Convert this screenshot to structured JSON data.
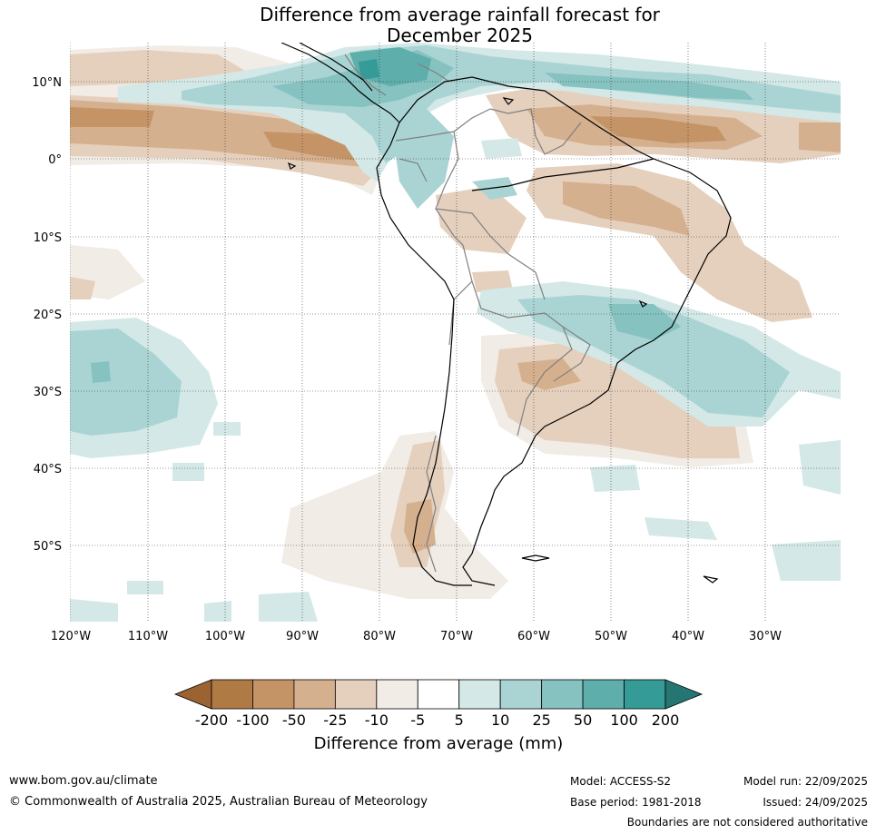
{
  "title": {
    "line1": "Difference from average rainfall forecast for",
    "line2": "December 2025"
  },
  "map": {
    "lat_labels": [
      "10°N",
      "0°",
      "10°S",
      "20°S",
      "30°S",
      "40°S",
      "50°S"
    ],
    "lon_labels": [
      "120°W",
      "110°W",
      "100°W",
      "90°W",
      "80°W",
      "70°W",
      "60°W",
      "50°W",
      "40°W",
      "30°W"
    ]
  },
  "colorbar": {
    "ticks": [
      "-200",
      "-100",
      "-50",
      "-25",
      "-10",
      "-5",
      "5",
      "10",
      "25",
      "50",
      "100",
      "200"
    ],
    "colors": [
      "#9c6332",
      "#b07a45",
      "#c49467",
      "#d5b08e",
      "#e5d0bd",
      "#f1ece6",
      "#ffffff",
      "#d3e8e7",
      "#aad4d3",
      "#85c2c0",
      "#5eaeab",
      "#349b97",
      "#257672"
    ],
    "label": "Difference from average (mm)"
  },
  "footer": {
    "website": "www.bom.gov.au/climate",
    "copyright": "© Commonwealth of Australia 2025, Australian Bureau of Meteorology",
    "model": "Model: ACCESS-S2",
    "base_period": "Base period: 1981-2018",
    "model_run": "Model run: 22/09/2025",
    "issued": "Issued: 24/09/2025",
    "disclaimer": "Boundaries are not considered authoritative"
  }
}
